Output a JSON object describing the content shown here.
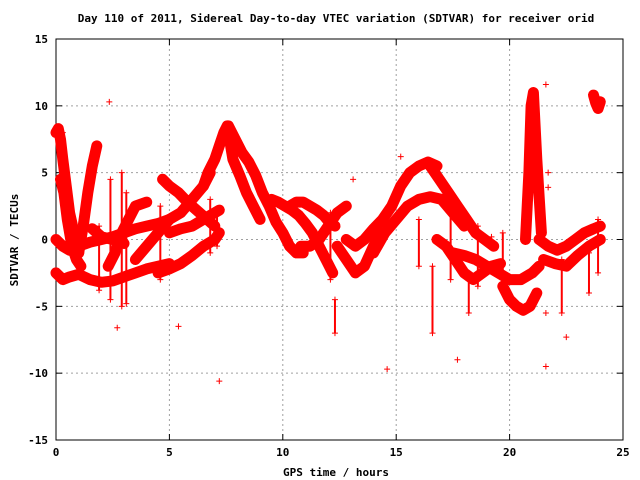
{
  "chart_data": {
    "type": "scatter",
    "title": "Day 110 of 2011, Sidereal Day-to-day VTEC variation (SDTVAR) for receiver orid",
    "xlabel": "GPS time / hours",
    "ylabel": "SDTVAR / TECUs",
    "xlim": [
      0,
      25
    ],
    "ylim": [
      -15,
      15
    ],
    "xticks": [
      0,
      5,
      10,
      15,
      20,
      25
    ],
    "yticks": [
      -15,
      -10,
      -5,
      0,
      5,
      10,
      15
    ],
    "grid": true,
    "marker": "plus",
    "color": "#ff0000",
    "tracks": [
      {
        "x": [
          0.0,
          0.3,
          0.6,
          1.0,
          1.5,
          2.0,
          2.5,
          3.0,
          3.5,
          4.0,
          4.5,
          5.0
        ],
        "y": [
          -2.5,
          -3.0,
          -2.8,
          -2.6,
          -3.0,
          -3.2,
          -3.1,
          -2.8,
          -2.5,
          -2.2,
          -2.0,
          -1.8
        ]
      },
      {
        "x": [
          0.0,
          0.3,
          0.6,
          1.0,
          1.5,
          2.0,
          2.5,
          3.0,
          3.5,
          4.0,
          4.5,
          5.0
        ],
        "y": [
          0.0,
          -0.5,
          -0.8,
          -0.5,
          -0.2,
          0.0,
          0.2,
          0.5,
          0.8,
          1.0,
          1.2,
          1.5
        ]
      },
      {
        "x": [
          0.0,
          0.1,
          0.2,
          0.3,
          0.45,
          0.6,
          0.8,
          1.0
        ],
        "y": [
          8.0,
          8.3,
          7.5,
          6.0,
          4.0,
          2.0,
          0.5,
          -1.0
        ]
      },
      {
        "x": [
          0.2,
          0.35,
          0.5,
          0.7,
          0.9,
          1.1
        ],
        "y": [
          4.5,
          3.5,
          1.5,
          -0.5,
          -1.5,
          -2.0
        ]
      },
      {
        "x": [
          1.0,
          1.2,
          1.4,
          1.6,
          1.8
        ],
        "y": [
          -1.0,
          1.0,
          3.5,
          5.5,
          7.0
        ]
      },
      {
        "x": [
          1.6,
          2.0,
          2.5,
          3.0
        ],
        "y": [
          0.8,
          0.2,
          0.0,
          -0.3
        ]
      },
      {
        "x": [
          2.3,
          2.6,
          2.9,
          3.2,
          3.5,
          4.0
        ],
        "y": [
          -2.0,
          -1.0,
          0.5,
          1.5,
          2.5,
          2.8
        ]
      },
      {
        "x": [
          3.5,
          4.0,
          4.5,
          5.0,
          5.5,
          6.0,
          6.5,
          6.8
        ],
        "y": [
          -1.5,
          -0.5,
          0.5,
          1.5,
          2.0,
          3.0,
          4.0,
          5.0
        ]
      },
      {
        "x": [
          4.5,
          5.0,
          5.5,
          6.0,
          6.5,
          7.0,
          7.2
        ],
        "y": [
          -2.5,
          -2.2,
          -1.8,
          -1.2,
          -0.5,
          0.0,
          0.5
        ]
      },
      {
        "x": [
          5.0,
          5.5,
          6.0,
          6.5,
          7.0,
          7.2
        ],
        "y": [
          0.5,
          0.8,
          1.0,
          1.5,
          2.0,
          2.2
        ]
      },
      {
        "x": [
          6.5,
          6.7,
          7.0,
          7.2,
          7.4,
          7.55
        ],
        "y": [
          4.0,
          5.0,
          6.0,
          7.0,
          8.0,
          8.5
        ]
      },
      {
        "x": [
          4.7,
          5.0,
          5.4,
          5.8,
          6.2,
          6.6,
          7.0
        ],
        "y": [
          4.5,
          4.0,
          3.5,
          2.8,
          2.2,
          1.6,
          1.0
        ]
      },
      {
        "x": [
          7.6,
          7.9,
          8.2,
          8.5,
          8.8,
          9.1,
          9.4,
          9.7,
          10.0,
          10.3,
          10.6,
          10.9
        ],
        "y": [
          8.5,
          7.5,
          6.5,
          5.8,
          4.8,
          3.5,
          2.5,
          1.3,
          0.5,
          -0.5,
          -1.0,
          -1.0
        ]
      },
      {
        "x": [
          7.6,
          7.8,
          8.1,
          8.4,
          8.7,
          9.0
        ],
        "y": [
          8.0,
          6.0,
          4.8,
          3.5,
          2.5,
          1.5
        ]
      },
      {
        "x": [
          9.5,
          9.8,
          10.1,
          10.4,
          10.7,
          11.0,
          11.3,
          11.6,
          11.9,
          12.2
        ],
        "y": [
          3.0,
          2.8,
          2.5,
          2.2,
          1.8,
          1.2,
          0.5,
          -0.5,
          -1.5,
          -2.5
        ]
      },
      {
        "x": [
          10.3,
          10.6,
          10.9,
          11.2,
          11.5,
          11.8,
          12.1,
          12.3
        ],
        "y": [
          2.5,
          2.8,
          2.8,
          2.5,
          2.2,
          1.8,
          1.2,
          1.0
        ]
      },
      {
        "x": [
          10.8,
          11.2,
          11.6,
          12.0,
          12.4,
          12.8
        ],
        "y": [
          -0.5,
          -0.5,
          0.0,
          1.0,
          2.0,
          2.5
        ]
      },
      {
        "x": [
          12.4,
          12.8,
          13.2,
          13.6,
          14.0,
          14.3
        ],
        "y": [
          -0.5,
          -1.5,
          -2.5,
          -2.0,
          -0.5,
          0.5
        ]
      },
      {
        "x": [
          12.8,
          13.2,
          13.6,
          14.0,
          14.4,
          14.8,
          15.2,
          15.6,
          16.0,
          16.4,
          16.8
        ],
        "y": [
          0.0,
          -0.5,
          0.0,
          0.8,
          1.5,
          2.5,
          4.0,
          5.0,
          5.5,
          5.8,
          5.5
        ]
      },
      {
        "x": [
          14.0,
          14.5,
          15.0,
          15.5,
          16.0,
          16.5,
          17.0,
          17.5,
          18.0
        ],
        "y": [
          -1.0,
          0.5,
          1.5,
          2.5,
          3.0,
          3.2,
          3.0,
          2.0,
          1.0
        ]
      },
      {
        "x": [
          16.5,
          16.9,
          17.3,
          17.7,
          18.1,
          18.5,
          18.9,
          19.3
        ],
        "y": [
          5.5,
          4.5,
          3.5,
          2.5,
          1.5,
          0.5,
          0.0,
          -0.5
        ]
      },
      {
        "x": [
          16.8,
          17.2,
          17.6,
          18.0,
          18.4,
          18.8,
          19.2,
          19.6
        ],
        "y": [
          0.0,
          -0.5,
          -1.5,
          -2.5,
          -3.0,
          -2.5,
          -2.0,
          -1.8
        ]
      },
      {
        "x": [
          17.5,
          18.0,
          18.5,
          19.0,
          19.5,
          20.0,
          20.5,
          21.0,
          21.3
        ],
        "y": [
          -1.0,
          -1.2,
          -1.5,
          -2.0,
          -2.5,
          -3.0,
          -3.0,
          -2.5,
          -2.0
        ]
      },
      {
        "x": [
          19.7,
          20.0,
          20.3,
          20.6,
          20.9,
          21.2
        ],
        "y": [
          -3.5,
          -4.5,
          -5.0,
          -5.3,
          -5.0,
          -4.0
        ]
      },
      {
        "x": [
          20.7,
          20.85,
          20.95,
          21.05,
          21.2,
          21.4
        ],
        "y": [
          0.0,
          5.0,
          10.0,
          11.0,
          6.0,
          0.5
        ]
      },
      {
        "x": [
          21.3,
          21.7,
          22.1,
          22.5,
          22.9,
          23.3,
          23.7,
          24.0
        ],
        "y": [
          0.0,
          -0.5,
          -0.8,
          -0.5,
          0.0,
          0.5,
          0.8,
          1.0
        ]
      },
      {
        "x": [
          21.5,
          22.0,
          22.5,
          23.0,
          23.5,
          24.0
        ],
        "y": [
          -1.5,
          -1.8,
          -2.0,
          -1.2,
          -0.5,
          0.0
        ]
      },
      {
        "x": [
          23.7,
          23.8,
          23.9,
          24.0
        ],
        "y": [
          10.8,
          10.2,
          9.8,
          10.3
        ]
      }
    ],
    "spikes": [
      {
        "x": 0.3,
        "y": [
          4.5,
          8.0
        ]
      },
      {
        "x": 1.9,
        "y": [
          -3.8,
          1.0
        ]
      },
      {
        "x": 2.4,
        "y": [
          -4.5,
          4.5
        ]
      },
      {
        "x": 2.9,
        "y": [
          -5.0,
          5.0
        ]
      },
      {
        "x": 3.1,
        "y": [
          -4.8,
          3.5
        ]
      },
      {
        "x": 4.6,
        "y": [
          -3.0,
          2.5
        ]
      },
      {
        "x": 6.8,
        "y": [
          -1.0,
          3.0
        ]
      },
      {
        "x": 7.1,
        "y": [
          -0.5,
          2.0
        ]
      },
      {
        "x": 12.1,
        "y": [
          -3.0,
          2.0
        ]
      },
      {
        "x": 12.3,
        "y": [
          -7.0,
          -4.5
        ]
      },
      {
        "x": 16.0,
        "y": [
          -2.0,
          1.5
        ]
      },
      {
        "x": 16.6,
        "y": [
          -7.0,
          -2.0
        ]
      },
      {
        "x": 17.4,
        "y": [
          -3.0,
          2.5
        ]
      },
      {
        "x": 18.2,
        "y": [
          -5.5,
          -2.5
        ]
      },
      {
        "x": 18.6,
        "y": [
          -3.5,
          1.0
        ]
      },
      {
        "x": 19.7,
        "y": [
          -3.0,
          0.5
        ]
      },
      {
        "x": 22.3,
        "y": [
          -5.5,
          -1.5
        ]
      },
      {
        "x": 23.5,
        "y": [
          -4.0,
          -1.0
        ]
      },
      {
        "x": 23.9,
        "y": [
          -2.5,
          1.5
        ]
      }
    ],
    "outliers": [
      {
        "x": 2.35,
        "y": 10.3
      },
      {
        "x": 2.7,
        "y": -6.6
      },
      {
        "x": 5.4,
        "y": -6.5
      },
      {
        "x": 7.2,
        "y": -10.6
      },
      {
        "x": 13.1,
        "y": 4.5
      },
      {
        "x": 14.6,
        "y": -9.7
      },
      {
        "x": 15.2,
        "y": 6.2
      },
      {
        "x": 17.7,
        "y": -9.0
      },
      {
        "x": 21.6,
        "y": 11.6
      },
      {
        "x": 21.6,
        "y": -9.5
      },
      {
        "x": 21.7,
        "y": 5.0
      },
      {
        "x": 21.7,
        "y": 3.9
      },
      {
        "x": 21.6,
        "y": -5.5
      },
      {
        "x": 22.5,
        "y": -7.3
      },
      {
        "x": 19.2,
        "y": 0.2
      }
    ]
  }
}
